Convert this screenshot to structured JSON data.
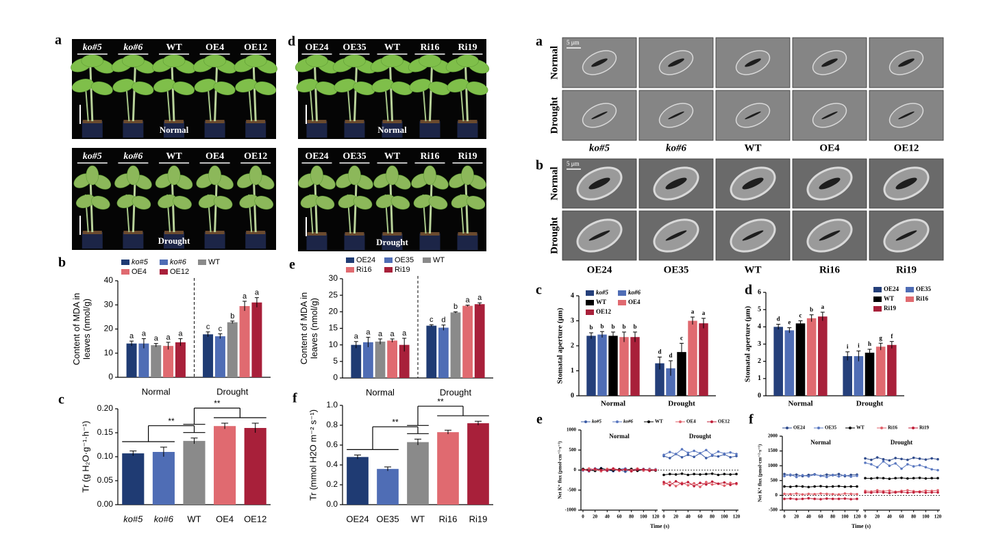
{
  "photo_panels": [
    {
      "panel": "a",
      "genotypes": [
        "ko#5",
        "ko#6",
        "WT",
        "OE4",
        "OE12"
      ],
      "italic": [
        true,
        true,
        false,
        false,
        false
      ],
      "conditions": [
        "Normal",
        "Drought"
      ]
    },
    {
      "panel": "d",
      "genotypes": [
        "OE24",
        "OE35",
        "WT",
        "Ri16",
        "Ri19"
      ],
      "italic": [
        false,
        false,
        false,
        false,
        false
      ],
      "conditions": [
        "Normal",
        "Drought"
      ]
    },
    {
      "panel": "a",
      "scale_bar": "5 μm",
      "genotypes": [
        "ko#5",
        "ko#6",
        "WT",
        "OE4",
        "OE12"
      ],
      "italic": [
        true,
        true,
        false,
        false,
        false
      ],
      "conditions": [
        "Normal",
        "Drought"
      ]
    },
    {
      "panel": "b",
      "scale_bar": "5 μm",
      "genotypes": [
        "OE24",
        "OE35",
        "WT",
        "Ri16",
        "Ri19"
      ],
      "italic": [
        false,
        false,
        false,
        false,
        false
      ],
      "conditions": [
        "Normal",
        "Drought"
      ]
    }
  ],
  "chart_data": [
    {
      "type": "bar",
      "panel": "b",
      "ylabel": [
        "Content of MDA in",
        "leaves (nmol/g)"
      ],
      "categories": [
        "Normal",
        "Drought"
      ],
      "divider": true,
      "legend": "top",
      "series": [
        {
          "name": "ko#5",
          "italic": true,
          "color": "#1f3b73",
          "values": [
            14,
            17.8
          ],
          "errors": [
            1,
            1
          ],
          "letters": [
            "a",
            "c"
          ]
        },
        {
          "name": "ko#6",
          "italic": true,
          "color": "#4f6db5",
          "values": [
            14,
            17
          ],
          "errors": [
            2,
            1
          ],
          "letters": [
            "a",
            "c"
          ]
        },
        {
          "name": "WT",
          "color": "#8a8a8a",
          "values": [
            13.3,
            22.8
          ],
          "errors": [
            0.7,
            0.5
          ],
          "letters": [
            "a",
            "b"
          ]
        },
        {
          "name": "OE4",
          "color": "#e06a70",
          "values": [
            13,
            29.5
          ],
          "errors": [
            1.5,
            2
          ],
          "letters": [
            "a",
            "a"
          ]
        },
        {
          "name": "OE12",
          "color": "#a8203a",
          "values": [
            14.5,
            31
          ],
          "errors": [
            1.5,
            2
          ],
          "letters": [
            "a",
            "a"
          ]
        }
      ],
      "ylim": [
        0,
        40
      ],
      "yticks": [
        0,
        10,
        20,
        30,
        40
      ]
    },
    {
      "type": "bar",
      "panel": "c",
      "ylabel": [
        "Tr (g H₂O·g⁻¹·h⁻¹)"
      ],
      "categories": [
        "ko#5",
        "ko#6",
        "WT",
        "OE4",
        "OE12"
      ],
      "italic_categories": [
        true,
        true,
        false,
        false,
        false
      ],
      "values": [
        0.107,
        0.11,
        0.133,
        0.164,
        0.16
      ],
      "errors": [
        0.005,
        0.01,
        0.006,
        0.006,
        0.01
      ],
      "colors": [
        "#1f3b73",
        "#4f6db5",
        "#8a8a8a",
        "#e06a70",
        "#a8203a"
      ],
      "ylim": [
        0,
        0.2
      ],
      "yticks": [
        {
          "value": 0,
          "label": "0.00"
        },
        0.05,
        {
          "value": 0.1,
          "label": "0.10"
        },
        0.15,
        {
          "value": 0.2,
          "label": "0.20"
        }
      ],
      "annotations": [
        "**",
        "**"
      ]
    },
    {
      "type": "bar",
      "panel": "e",
      "ylabel": [
        "Content of MDA in",
        "leaves (nmol/g)"
      ],
      "categories": [
        "Normal",
        "Drought"
      ],
      "divider": true,
      "legend": "top",
      "series": [
        {
          "name": "OE24",
          "color": "#1f3b73",
          "values": [
            10,
            15.8
          ],
          "errors": [
            1,
            0.3
          ],
          "letters": [
            "a",
            "c"
          ]
        },
        {
          "name": "OE35",
          "color": "#4f6db5",
          "values": [
            10.8,
            15.2
          ],
          "errors": [
            1.5,
            0.8
          ],
          "letters": [
            "a",
            "d"
          ]
        },
        {
          "name": "WT",
          "color": "#8a8a8a",
          "values": [
            11,
            19.8
          ],
          "errors": [
            0.8,
            0.2
          ],
          "letters": [
            "a",
            "b"
          ]
        },
        {
          "name": "Ri16",
          "color": "#e06a70",
          "values": [
            11.3,
            21.8
          ],
          "errors": [
            0.5,
            0.2
          ],
          "letters": [
            "a",
            "a"
          ]
        },
        {
          "name": "Ri19",
          "color": "#a8203a",
          "values": [
            10,
            22.3
          ],
          "errors": [
            2,
            0.4
          ],
          "letters": [
            "a",
            "a"
          ]
        }
      ],
      "ylim": [
        0,
        30
      ],
      "yticks": [
        0,
        5,
        10,
        15,
        20,
        25,
        30
      ]
    },
    {
      "type": "bar",
      "panel": "f",
      "ylabel": [
        "Tr (mmol H2O m⁻² s⁻¹)"
      ],
      "categories": [
        "OE24",
        "OE35",
        "WT",
        "Ri16",
        "Ri19"
      ],
      "values": [
        0.48,
        0.36,
        0.63,
        0.73,
        0.82
      ],
      "errors": [
        0.02,
        0.02,
        0.03,
        0.02,
        0.02
      ],
      "colors": [
        "#1f3b73",
        "#4f6db5",
        "#8a8a8a",
        "#e06a70",
        "#a8203a"
      ],
      "ylim": [
        0,
        1
      ],
      "yticks": [
        {
          "value": 0,
          "label": "0.0"
        },
        0.2,
        0.4,
        0.6,
        0.8,
        {
          "value": 1,
          "label": "1.0"
        }
      ],
      "annotations": [
        "**",
        "**"
      ]
    },
    {
      "type": "bar",
      "panel": "c",
      "ylabel": [
        "Stomatal aperture (μm)"
      ],
      "categories": [
        "Normal",
        "Drought"
      ],
      "legend": "upper left",
      "series": [
        {
          "name": "ko#5",
          "italic": true,
          "color": "#243f7a",
          "values": [
            2.4,
            1.3
          ],
          "errors": [
            0.12,
            0.25
          ],
          "letters": [
            "b",
            "d"
          ]
        },
        {
          "name": "ko#6",
          "italic": true,
          "color": "#4f6db5",
          "values": [
            2.45,
            1.1
          ],
          "errors": [
            0.12,
            0.3
          ],
          "letters": [
            "b",
            "d"
          ]
        },
        {
          "name": "WT",
          "color": "#000000",
          "values": [
            2.4,
            1.75
          ],
          "errors": [
            0.15,
            0.35
          ],
          "letters": [
            "b",
            "c"
          ]
        },
        {
          "name": "OE4",
          "color": "#e06a70",
          "values": [
            2.35,
            3.0
          ],
          "errors": [
            0.2,
            0.15
          ],
          "letters": [
            "b",
            "a"
          ]
        },
        {
          "name": "OE12",
          "color": "#a8203a",
          "values": [
            2.35,
            2.9
          ],
          "errors": [
            0.2,
            0.2
          ],
          "letters": [
            "b",
            "a"
          ]
        }
      ],
      "ylim": [
        0,
        4
      ],
      "yticks": [
        0,
        1,
        2,
        3,
        4
      ]
    },
    {
      "type": "bar",
      "panel": "d",
      "ylabel": [
        "Stomatal aperture (μm)"
      ],
      "categories": [
        "Normal",
        "Drought"
      ],
      "legend": "upper right",
      "series": [
        {
          "name": "OE24",
          "color": "#243f7a",
          "values": [
            4.0,
            2.3
          ],
          "errors": [
            0.15,
            0.25
          ],
          "letters": [
            "d",
            "i"
          ]
        },
        {
          "name": "OE35",
          "color": "#4f6db5",
          "values": [
            3.8,
            2.3
          ],
          "errors": [
            0.15,
            0.3
          ],
          "letters": [
            "e",
            "i"
          ]
        },
        {
          "name": "WT",
          "color": "#000000",
          "values": [
            4.2,
            2.5
          ],
          "errors": [
            0.15,
            0.2
          ],
          "letters": [
            "c",
            "h"
          ]
        },
        {
          "name": "Ri16",
          "color": "#e06a70",
          "values": [
            4.5,
            2.85
          ],
          "errors": [
            0.2,
            0.2
          ],
          "letters": [
            "b",
            "g"
          ]
        },
        {
          "name": "Ri19",
          "color": "#a8203a",
          "values": [
            4.6,
            2.95
          ],
          "errors": [
            0.25,
            0.2
          ],
          "letters": [
            "a",
            "f"
          ]
        }
      ],
      "ylim": [
        0,
        6
      ],
      "yticks": [
        0,
        1,
        2,
        3,
        4,
        5,
        6
      ]
    },
    {
      "type": "line",
      "panel": "e",
      "ylabel": "Net K⁺ flux (pmol·cm⁻²·s⁻¹)",
      "xlabel": "Time (s)",
      "ylim": [
        -1000,
        1000
      ],
      "yticks": [
        -1000,
        -500,
        0,
        500,
        1000
      ],
      "xlim": [
        0,
        120
      ],
      "xticks": [
        0,
        20,
        40,
        60,
        80,
        100,
        120
      ],
      "x": [
        0,
        10,
        20,
        30,
        40,
        50,
        60,
        70,
        80,
        90,
        100,
        110,
        120
      ],
      "series": [
        {
          "name": "ko#5",
          "italic": true,
          "color": "#3b5ba5"
        },
        {
          "name": "ko#6",
          "italic": true,
          "color": "#5a78c0"
        },
        {
          "name": "WT",
          "color": "#000000"
        },
        {
          "name": "OE4",
          "color": "#e0606a"
        },
        {
          "name": "OE12",
          "color": "#c0203a"
        }
      ],
      "conditions": [
        {
          "label": "Normal",
          "values": [
            [
              20,
              -30,
              40,
              10,
              -20,
              30,
              0,
              -40,
              20,
              10,
              -10,
              30,
              0
            ],
            [
              -10,
              30,
              -20,
              50,
              0,
              -30,
              20,
              40,
              -20,
              0,
              30,
              -10,
              20
            ],
            [
              30,
              0,
              -20,
              40,
              10,
              -10,
              20,
              0,
              30,
              -20,
              10,
              0,
              -10
            ],
            [
              0,
              40,
              10,
              -30,
              30,
              20,
              -20,
              10,
              0,
              40,
              -10,
              20,
              10
            ],
            [
              10,
              -20,
              30,
              0,
              -10,
              40,
              0,
              20,
              -30,
              10,
              20,
              -20,
              0
            ]
          ]
        },
        {
          "label": "Drought",
          "values": [
            [
              350,
              300,
              400,
              320,
              380,
              330,
              420,
              300,
              360,
              340,
              390,
              320,
              350
            ],
            [
              380,
              450,
              400,
              520,
              430,
              480,
              420,
              500,
              380,
              460,
              410,
              440,
              400
            ],
            [
              -120,
              -100,
              -110,
              -90,
              -120,
              -100,
              -110,
              -100,
              -90,
              -120,
              -100,
              -110,
              -100
            ],
            [
              -350,
              -300,
              -400,
              -320,
              -380,
              -330,
              -420,
              -300,
              -360,
              -340,
              -390,
              -320,
              -350
            ],
            [
              -300,
              -380,
              -280,
              -350,
              -300,
              -400,
              -320,
              -360,
              -290,
              -340,
              -310,
              -370,
              -330
            ]
          ]
        }
      ]
    },
    {
      "type": "line",
      "panel": "f",
      "ylabel": "Net K⁺ flux (pmol·cm⁻²·s⁻¹)",
      "xlabel": "Time (s)",
      "ylim": [
        -500,
        2000
      ],
      "yticks": [
        -500,
        0,
        500,
        1000,
        1500,
        2000
      ],
      "xlim": [
        0,
        120
      ],
      "xticks": [
        0,
        20,
        40,
        60,
        80,
        100,
        120
      ],
      "x": [
        0,
        10,
        20,
        30,
        40,
        50,
        60,
        70,
        80,
        90,
        100,
        110,
        120
      ],
      "series": [
        {
          "name": "OE24",
          "color": "#2e4a8c"
        },
        {
          "name": "OE35",
          "color": "#5a78c0"
        },
        {
          "name": "WT",
          "color": "#000000"
        },
        {
          "name": "Ri16",
          "color": "#e0606a"
        },
        {
          "name": "Ri19",
          "color": "#c0203a"
        }
      ],
      "conditions": [
        {
          "label": "Normal",
          "values": [
            [
              720,
              680,
              700,
              650,
              690,
              710,
              660,
              700,
              680,
              720,
              650,
              690,
              700
            ],
            [
              650,
              700,
              620,
              680,
              640,
              700,
              660,
              620,
              690,
              640,
              680,
              630,
              660
            ],
            [
              300,
              290,
              310,
              300,
              280,
              300,
              310,
              290,
              300,
              310,
              290,
              300,
              300
            ],
            [
              50,
              40,
              60,
              30,
              50,
              40,
              60,
              50,
              40,
              30,
              60,
              50,
              40
            ],
            [
              -120,
              -110,
              -130,
              -120,
              -100,
              -120,
              -130,
              -110,
              -120,
              -120,
              -110,
              -130,
              -120
            ]
          ]
        },
        {
          "label": "Drought",
          "values": [
            [
              1250,
              1200,
              1280,
              1220,
              1180,
              1260,
              1230,
              1200,
              1270,
              1240,
              1210,
              1250,
              1220
            ],
            [
              1100,
              1050,
              950,
              1150,
              1000,
              1080,
              900,
              1050,
              980,
              1020,
              950,
              880,
              850
            ],
            [
              580,
              570,
              590,
              580,
              560,
              580,
              590,
              570,
              580,
              590,
              570,
              580,
              580
            ],
            [
              150,
              130,
              170,
              140,
              160,
              120,
              150,
              170,
              140,
              130,
              160,
              150,
              170
            ],
            [
              100,
              90,
              110,
              100,
              80,
              100,
              110,
              90,
              100,
              110,
              90,
              100,
              100
            ]
          ]
        }
      ]
    }
  ]
}
